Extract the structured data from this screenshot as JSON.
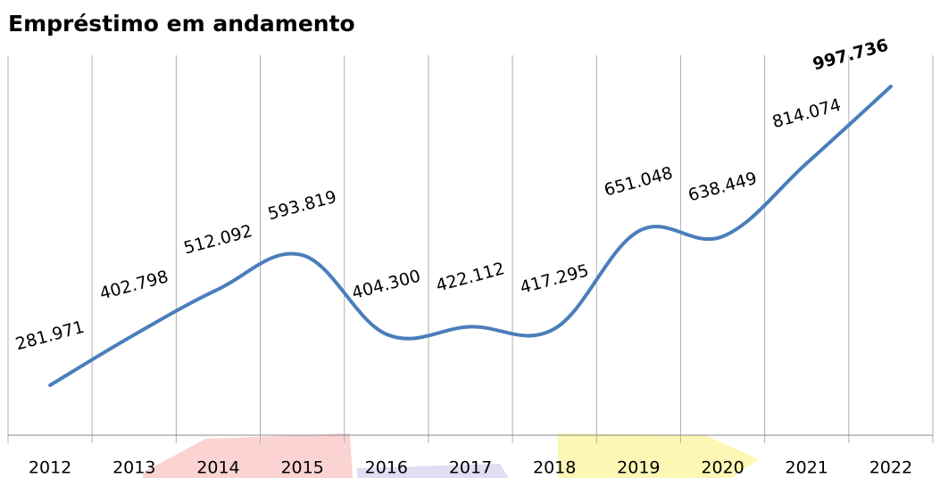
{
  "chart_data": {
    "type": "line",
    "title": "Empréstimo em andamento",
    "categories": [
      "2012",
      "2013",
      "2014",
      "2015",
      "2016",
      "2017",
      "2018",
      "2019",
      "2020",
      "2021",
      "2022"
    ],
    "series": [
      {
        "name": "Empréstimo em andamento",
        "color": "#4a7ebb",
        "values": [
          281971,
          402798,
          512092,
          593819,
          404300,
          422112,
          417295,
          651048,
          638449,
          814074,
          997736
        ],
        "value_labels": [
          "281.971",
          "402.798",
          "512.092",
          "593.819",
          "404.300",
          "422.112",
          "417.295",
          "651.048",
          "638.449",
          "814.074",
          "997.736"
        ]
      }
    ]
  }
}
